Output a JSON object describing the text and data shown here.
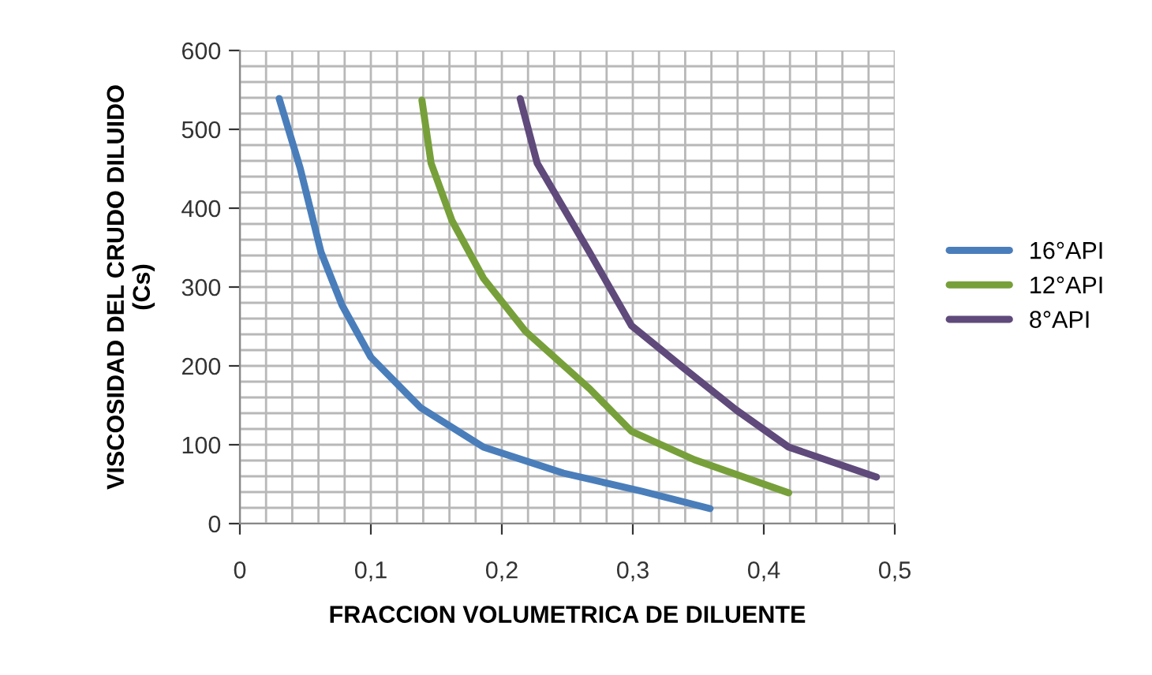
{
  "chart_data": {
    "type": "line",
    "xlabel": "FRACCION VOLUMETRICA DE DILUENTE",
    "ylabel": "VISCOSIDAD DEL CRUDO DILUIDO\n(Cs)",
    "xlim": [
      0,
      0.5
    ],
    "ylim": [
      0,
      600
    ],
    "xticks": [
      {
        "value": 0,
        "label": "0"
      },
      {
        "value": 0.1,
        "label": "0,1"
      },
      {
        "value": 0.2,
        "label": "0,2"
      },
      {
        "value": 0.3,
        "label": "0,3"
      },
      {
        "value": 0.4,
        "label": "0,4"
      },
      {
        "value": 0.5,
        "label": "0,5"
      }
    ],
    "yticks": [
      0,
      100,
      200,
      300,
      400,
      500,
      600
    ],
    "grid": true,
    "legend": "right",
    "marker": "none",
    "line_style": "solid",
    "series": [
      {
        "name": "16°API",
        "color": "#4a7ebb",
        "x": [
          0.03,
          0.046,
          0.062,
          0.078,
          0.1,
          0.138,
          0.186,
          0.247,
          0.307,
          0.359
        ],
        "values": [
          539,
          451,
          344,
          277,
          211,
          147,
          97,
          64,
          41,
          19
        ]
      },
      {
        "name": "12°API",
        "color": "#77a03a",
        "x": [
          0.139,
          0.146,
          0.162,
          0.186,
          0.218,
          0.267,
          0.299,
          0.347,
          0.419
        ],
        "values": [
          537,
          457,
          384,
          311,
          244,
          171,
          117,
          81,
          39
        ]
      },
      {
        "name": "8°API",
        "color": "#5f4a7b",
        "x": [
          0.214,
          0.227,
          0.267,
          0.299,
          0.339,
          0.379,
          0.419,
          0.486
        ],
        "values": [
          539,
          457,
          344,
          251,
          197,
          144,
          97,
          59
        ]
      }
    ]
  }
}
